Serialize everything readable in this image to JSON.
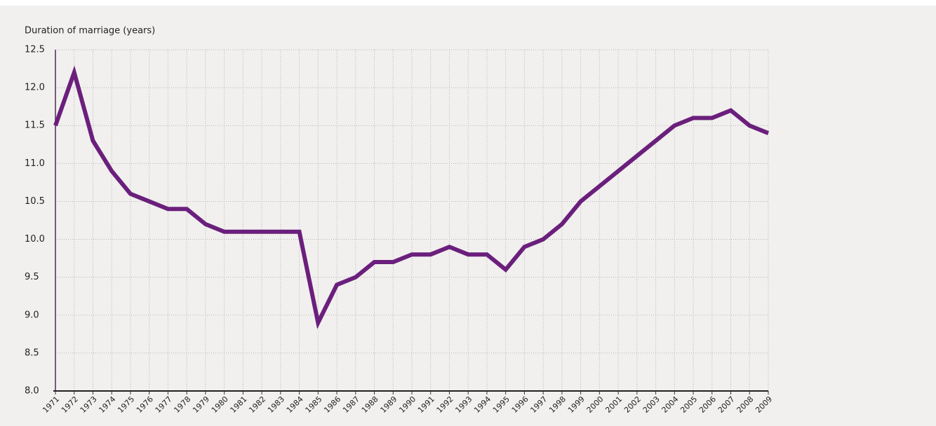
{
  "chart_data": {
    "type": "line",
    "y_label": "Duration of marriage (years)",
    "categories": [
      "1971",
      "1972",
      "1973",
      "1974",
      "1975",
      "1976",
      "1977",
      "1978",
      "1979",
      "1980",
      "1981",
      "1982",
      "1983",
      "1984",
      "1985",
      "1986",
      "1987",
      "1988",
      "1989",
      "1990",
      "1991",
      "1992",
      "1993",
      "1994",
      "1995",
      "1996",
      "1997",
      "1998",
      "1999",
      "2000",
      "2001",
      "2002",
      "2003",
      "2004",
      "2005",
      "2006",
      "2007",
      "2008",
      "2009"
    ],
    "series": [
      {
        "color": "#6b1f7c",
        "values": [
          11.5,
          12.2,
          11.3,
          10.9,
          10.6,
          10.5,
          10.4,
          10.4,
          10.2,
          10.1,
          10.1,
          10.1,
          10.1,
          10.1,
          8.9,
          9.4,
          9.5,
          9.7,
          9.7,
          9.8,
          9.8,
          9.9,
          9.8,
          9.8,
          9.6,
          9.9,
          10.0,
          10.2,
          10.5,
          10.7,
          10.9,
          11.1,
          11.3,
          11.5,
          11.6,
          11.6,
          11.7,
          11.5,
          11.4
        ]
      }
    ],
    "ylim": [
      8,
      12.5
    ],
    "yticks": [
      {
        "value": 8,
        "label": "8.0"
      },
      8.5,
      {
        "value": 9,
        "label": "9.0"
      },
      9.5,
      {
        "value": 10,
        "label": "10.0"
      },
      10.5,
      {
        "value": 11,
        "label": "11.0"
      },
      11.5,
      {
        "value": 12,
        "label": "12.0"
      },
      12.5
    ],
    "grid": true
  }
}
